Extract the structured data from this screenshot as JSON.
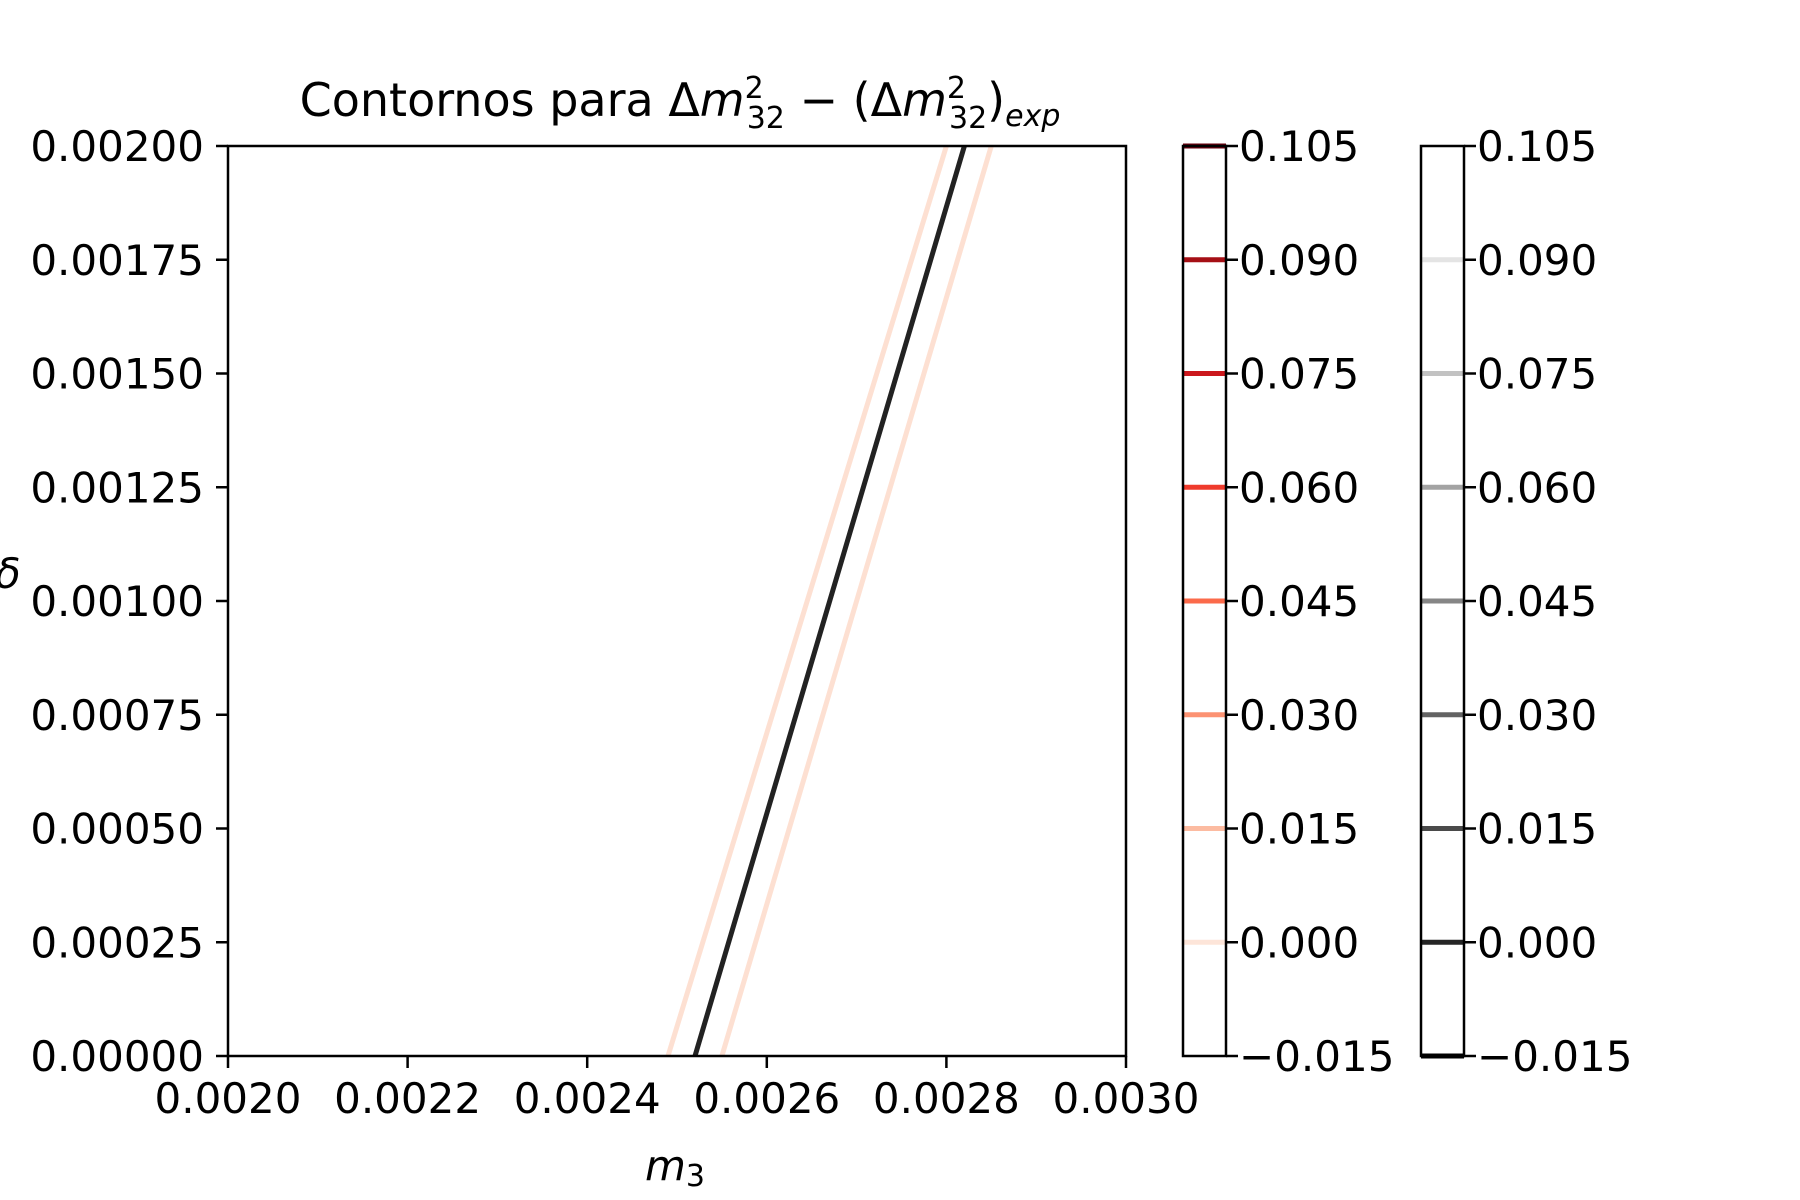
{
  "chart_data": {
    "type": "contour",
    "title": {
      "prefix": "Contornos para ",
      "expr_a_delta": "Δ",
      "expr_a_var": "m",
      "expr_a_sup": "2",
      "expr_a_sub": "32",
      "minus": " − (",
      "expr_b_delta": "Δ",
      "expr_b_var": "m",
      "expr_b_sup": "2",
      "expr_b_sub": "32",
      "close": ")",
      "expr_b_subscript": "exp"
    },
    "xlabel": {
      "var": "m",
      "sub": "3"
    },
    "ylabel": "δ",
    "xlim": [
      0.002,
      0.003
    ],
    "ylim": [
      0.0,
      0.002
    ],
    "x_ticks": [
      "0.0020",
      "0.0022",
      "0.0024",
      "0.0026",
      "0.0028",
      "0.0030"
    ],
    "x_tick_values": [
      0.002,
      0.0022,
      0.0024,
      0.0026,
      0.0028,
      0.003
    ],
    "y_ticks": [
      "0.00000",
      "0.00025",
      "0.00050",
      "0.00075",
      "0.00100",
      "0.00125",
      "0.00150",
      "0.00175",
      "0.00200"
    ],
    "y_tick_values": [
      0.0,
      0.00025,
      0.0005,
      0.00075,
      0.001,
      0.00125,
      0.0015,
      0.00175,
      0.002
    ],
    "series": [
      {
        "level": 0.0,
        "cmap": "Reds",
        "color": "#fde0d2",
        "points": [
          [
            0.00249,
            0.0
          ],
          [
            0.0028,
            0.002
          ]
        ]
      },
      {
        "level": 0.0,
        "cmap": "Reds",
        "color": "#fde0d2",
        "points": [
          [
            0.00255,
            0.0
          ],
          [
            0.00285,
            0.002
          ]
        ]
      },
      {
        "level": 0.0,
        "cmap": "Greys",
        "color": "#222222",
        "points": [
          [
            0.00252,
            0.0
          ],
          [
            0.00282,
            0.002
          ]
        ]
      }
    ],
    "colorbars": [
      {
        "cmap": "Reds",
        "ticks": [
          "−0.015",
          "0.000",
          "0.015",
          "0.030",
          "0.045",
          "0.060",
          "0.075",
          "0.090",
          "0.105"
        ],
        "tick_values": [
          -0.015,
          0.0,
          0.015,
          0.03,
          0.045,
          0.06,
          0.075,
          0.09,
          0.105
        ],
        "line_levels": [
          0.0,
          0.015,
          0.03,
          0.045,
          0.06,
          0.075,
          0.09,
          0.105
        ],
        "line_colors": [
          "#fde5d9",
          "#fcbba1",
          "#fc9272",
          "#fb6a4a",
          "#ef3b2c",
          "#cb181d",
          "#a50f15",
          "#67000d"
        ]
      },
      {
        "cmap": "Greys",
        "ticks": [
          "−0.015",
          "0.000",
          "0.015",
          "0.030",
          "0.045",
          "0.060",
          "0.075",
          "0.090",
          "0.105"
        ],
        "tick_values": [
          -0.015,
          0.0,
          0.015,
          0.03,
          0.045,
          0.06,
          0.075,
          0.09,
          0.105
        ],
        "line_levels": [
          -0.015,
          0.0,
          0.015,
          0.03,
          0.045,
          0.06,
          0.075,
          0.09
        ],
        "line_colors": [
          "#000000",
          "#252525",
          "#4a4a4a",
          "#636363",
          "#868686",
          "#a3a3a3",
          "#c2c2c2",
          "#e4e4e4"
        ]
      }
    ],
    "grid": false,
    "legend": "none"
  }
}
